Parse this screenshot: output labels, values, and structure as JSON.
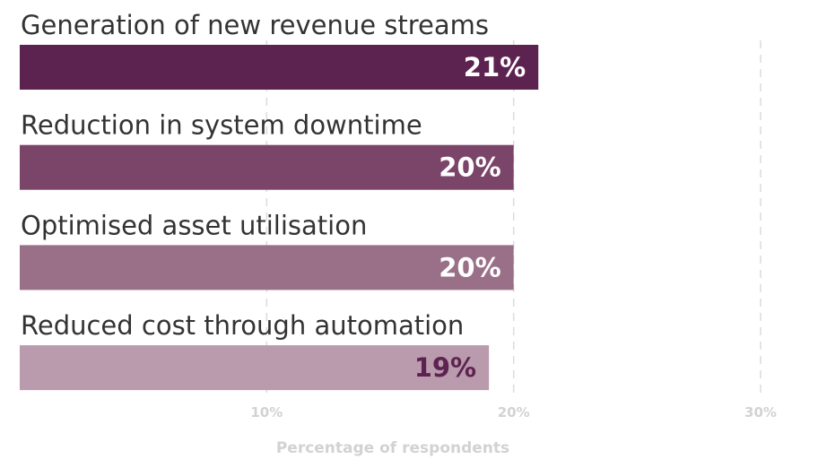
{
  "chart_data": {
    "type": "bar",
    "orientation": "horizontal",
    "categories": [
      "Generation of new revenue streams",
      "Reduction in system downtime",
      "Optimised asset utilisation",
      "Reduced cost through automation"
    ],
    "values": [
      21,
      20,
      20,
      19
    ],
    "value_labels": [
      "21%",
      "20%",
      "20%",
      "19%"
    ],
    "bar_colors": [
      "#5d2350",
      "#7b4469",
      "#9a7088",
      "#ba9aad"
    ],
    "value_label_colors": [
      "#ffffff",
      "#ffffff",
      "#ffffff",
      "#5d2350"
    ],
    "xlabel": "Percentage of respondents",
    "ylabel": "",
    "xlim": [
      0,
      30
    ],
    "x_ticks": [
      10,
      20,
      30
    ],
    "x_tick_labels": [
      "10%",
      "20%",
      "30%"
    ],
    "grid": true
  }
}
